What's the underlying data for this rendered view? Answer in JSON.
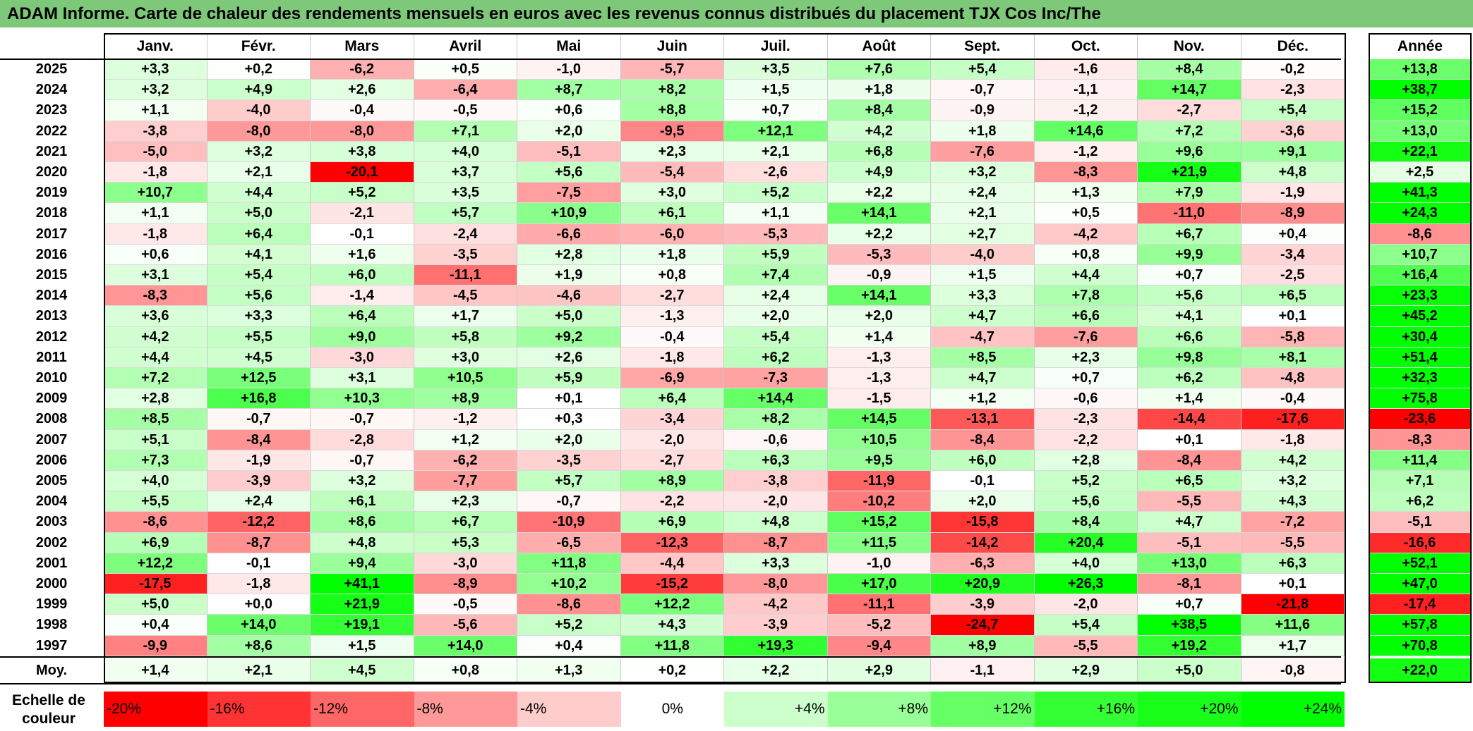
{
  "title": "ADAM Informe. Carte de chaleur des rendements mensuels en euros avec les revenus connus distribués du placement TJX Cos Inc/The",
  "chart_data": {
    "type": "heatmap",
    "months": [
      "Janv.",
      "Févr.",
      "Mars",
      "Avril",
      "Mai",
      "Juin",
      "Juil.",
      "Août",
      "Sept.",
      "Oct.",
      "Nov.",
      "Déc."
    ],
    "year_header": "Année",
    "rows": [
      {
        "year": "2025",
        "values": [
          "+3,3",
          "+0,2",
          "-6,2",
          "+0,5",
          "-1,0",
          "-5,7",
          "+3,5",
          "+7,6",
          "+5,4",
          "-1,6",
          "+8,4",
          "-0,2"
        ],
        "annual": "+13,8"
      },
      {
        "year": "2024",
        "values": [
          "+3,2",
          "+4,9",
          "+2,6",
          "-6,4",
          "+8,7",
          "+8,2",
          "+1,5",
          "+1,8",
          "-0,7",
          "-1,1",
          "+14,7",
          "-2,3"
        ],
        "annual": "+38,7"
      },
      {
        "year": "2023",
        "values": [
          "+1,1",
          "-4,0",
          "-0,4",
          "-0,5",
          "+0,6",
          "+8,8",
          "+0,7",
          "+8,4",
          "-0,9",
          "-1,2",
          "-2,7",
          "+5,4"
        ],
        "annual": "+15,2"
      },
      {
        "year": "2022",
        "values": [
          "-3,8",
          "-8,0",
          "-8,0",
          "+7,1",
          "+2,0",
          "-9,5",
          "+12,1",
          "+4,2",
          "+1,8",
          "+14,6",
          "+7,2",
          "-3,6"
        ],
        "annual": "+13,0"
      },
      {
        "year": "2021",
        "values": [
          "-5,0",
          "+3,2",
          "+3,8",
          "+4,0",
          "-5,1",
          "+2,3",
          "+2,1",
          "+6,8",
          "-7,6",
          "-1,2",
          "+9,6",
          "+9,1"
        ],
        "annual": "+22,1"
      },
      {
        "year": "2020",
        "values": [
          "-1,8",
          "+2,1",
          "-20,1",
          "+3,7",
          "+5,6",
          "-5,4",
          "-2,6",
          "+4,9",
          "+3,2",
          "-8,3",
          "+21,9",
          "+4,8"
        ],
        "annual": "+2,5"
      },
      {
        "year": "2019",
        "values": [
          "+10,7",
          "+4,4",
          "+5,2",
          "+3,5",
          "-7,5",
          "+3,0",
          "+5,2",
          "+2,2",
          "+2,4",
          "+1,3",
          "+7,9",
          "-1,9"
        ],
        "annual": "+41,3"
      },
      {
        "year": "2018",
        "values": [
          "+1,1",
          "+5,0",
          "-2,1",
          "+5,7",
          "+10,9",
          "+6,1",
          "+1,1",
          "+14,1",
          "+2,1",
          "+0,5",
          "-11,0",
          "-8,9"
        ],
        "annual": "+24,3"
      },
      {
        "year": "2017",
        "values": [
          "-1,8",
          "+6,4",
          "-0,1",
          "-2,4",
          "-6,6",
          "-6,0",
          "-5,3",
          "+2,2",
          "+2,7",
          "-4,2",
          "+6,7",
          "+0,4"
        ],
        "annual": "-8,6"
      },
      {
        "year": "2016",
        "values": [
          "+0,6",
          "+4,1",
          "+1,6",
          "-3,5",
          "+2,8",
          "+1,8",
          "+5,9",
          "-5,3",
          "-4,0",
          "+0,8",
          "+9,9",
          "-3,4"
        ],
        "annual": "+10,7"
      },
      {
        "year": "2015",
        "values": [
          "+3,1",
          "+5,4",
          "+6,0",
          "-11,1",
          "+1,9",
          "+0,8",
          "+7,4",
          "-0,9",
          "+1,5",
          "+4,4",
          "+0,7",
          "-2,5"
        ],
        "annual": "+16,4"
      },
      {
        "year": "2014",
        "values": [
          "-8,3",
          "+5,6",
          "-1,4",
          "-4,5",
          "-4,6",
          "-2,7",
          "+2,4",
          "+14,1",
          "+3,3",
          "+7,8",
          "+5,6",
          "+6,5"
        ],
        "annual": "+23,3"
      },
      {
        "year": "2013",
        "values": [
          "+3,6",
          "+3,3",
          "+6,4",
          "+1,7",
          "+5,0",
          "-1,3",
          "+2,0",
          "+2,0",
          "+4,7",
          "+6,6",
          "+4,1",
          "+0,1"
        ],
        "annual": "+45,2"
      },
      {
        "year": "2012",
        "values": [
          "+4,2",
          "+5,5",
          "+9,0",
          "+5,8",
          "+9,2",
          "-0,4",
          "+5,4",
          "+1,4",
          "-4,7",
          "-7,6",
          "+6,6",
          "-5,8"
        ],
        "annual": "+30,4"
      },
      {
        "year": "2011",
        "values": [
          "+4,4",
          "+4,5",
          "-3,0",
          "+3,0",
          "+2,6",
          "-1,8",
          "+6,2",
          "-1,3",
          "+8,5",
          "+2,3",
          "+9,8",
          "+8,1"
        ],
        "annual": "+51,4"
      },
      {
        "year": "2010",
        "values": [
          "+7,2",
          "+12,5",
          "+3,1",
          "+10,5",
          "+5,9",
          "-6,9",
          "-7,3",
          "-1,3",
          "+4,7",
          "+0,7",
          "+6,2",
          "-4,8"
        ],
        "annual": "+32,3"
      },
      {
        "year": "2009",
        "values": [
          "+2,8",
          "+16,8",
          "+10,3",
          "+8,9",
          "+0,1",
          "+6,4",
          "+14,4",
          "-1,5",
          "+1,2",
          "-0,6",
          "+1,4",
          "-0,4"
        ],
        "annual": "+75,8"
      },
      {
        "year": "2008",
        "values": [
          "+8,5",
          "-0,7",
          "-0,7",
          "-1,2",
          "+0,3",
          "-3,4",
          "+8,2",
          "+14,5",
          "-13,1",
          "-2,3",
          "-14,4",
          "-17,6"
        ],
        "annual": "-23,6"
      },
      {
        "year": "2007",
        "values": [
          "+5,1",
          "-8,4",
          "-2,8",
          "+1,2",
          "+2,0",
          "-2,0",
          "-0,6",
          "+10,5",
          "-8,4",
          "-2,2",
          "+0,1",
          "-1,8"
        ],
        "annual": "-8,3"
      },
      {
        "year": "2006",
        "values": [
          "+7,3",
          "-1,9",
          "-0,7",
          "-6,2",
          "-3,5",
          "-2,7",
          "+6,3",
          "+9,5",
          "+6,0",
          "+2,8",
          "-8,4",
          "+4,2"
        ],
        "annual": "+11,4"
      },
      {
        "year": "2005",
        "values": [
          "+4,0",
          "-3,9",
          "+3,2",
          "-7,7",
          "+5,7",
          "+8,9",
          "-3,8",
          "-11,9",
          "-0,1",
          "+5,2",
          "+6,5",
          "+3,2"
        ],
        "annual": "+7,1"
      },
      {
        "year": "2004",
        "values": [
          "+5,5",
          "+2,4",
          "+6,1",
          "+2,3",
          "-0,7",
          "-2,2",
          "-2,0",
          "-10,2",
          "+2,0",
          "+5,6",
          "-5,5",
          "+4,3"
        ],
        "annual": "+6,2"
      },
      {
        "year": "2003",
        "values": [
          "-8,6",
          "-12,2",
          "+8,6",
          "+6,7",
          "-10,9",
          "+6,9",
          "+4,8",
          "+15,2",
          "-15,8",
          "+8,4",
          "+4,7",
          "-7,2"
        ],
        "annual": "-5,1"
      },
      {
        "year": "2002",
        "values": [
          "+6,9",
          "-8,7",
          "+4,8",
          "+5,3",
          "-6,5",
          "-12,3",
          "-8,7",
          "+11,5",
          "-14,2",
          "+20,4",
          "-5,1",
          "-5,5"
        ],
        "annual": "-16,6"
      },
      {
        "year": "2001",
        "values": [
          "+12,2",
          "-0,1",
          "+9,4",
          "-3,0",
          "+11,8",
          "-4,4",
          "+3,3",
          "-1,0",
          "-6,3",
          "+4,0",
          "+13,0",
          "+6,3"
        ],
        "annual": "+52,1"
      },
      {
        "year": "2000",
        "values": [
          "-17,5",
          "-1,8",
          "+41,1",
          "-8,9",
          "+10,2",
          "-15,2",
          "-8,0",
          "+17,0",
          "+20,9",
          "+26,3",
          "-8,1",
          "+0,1"
        ],
        "annual": "+47,0"
      },
      {
        "year": "1999",
        "values": [
          "+5,0",
          "+0,0",
          "+21,9",
          "-0,5",
          "-8,6",
          "+12,2",
          "-4,2",
          "-11,1",
          "-3,9",
          "-2,0",
          "+0,7",
          "-21,8"
        ],
        "annual": "-17,4"
      },
      {
        "year": "1998",
        "values": [
          "+0,4",
          "+14,0",
          "+19,1",
          "-5,6",
          "+5,2",
          "+4,3",
          "-3,9",
          "-5,2",
          "-24,7",
          "+5,4",
          "+38,5",
          "+11,6"
        ],
        "annual": "+57,8"
      },
      {
        "year": "1997",
        "values": [
          "-9,9",
          "+8,6",
          "+1,5",
          "+14,0",
          "+0,4",
          "+11,8",
          "+19,3",
          "-9,4",
          "+8,9",
          "-5,5",
          "+19,2",
          "+1,7"
        ],
        "annual": "+70,8"
      }
    ],
    "average": {
      "label": "Moy.",
      "values": [
        "+1,4",
        "+2,1",
        "+4,5",
        "+0,8",
        "+1,3",
        "+0,2",
        "+2,2",
        "+2,9",
        "-1,1",
        "+2,9",
        "+5,0",
        "-0,8"
      ],
      "annual": "+22,0"
    },
    "scale": {
      "label": "Echelle de couleur",
      "stops": [
        {
          "label": "-20%",
          "value": -20,
          "color": "#ff0000"
        },
        {
          "label": "-16%",
          "value": -16,
          "color": "#ff3333"
        },
        {
          "label": "-12%",
          "value": -12,
          "color": "#ff6666"
        },
        {
          "label": "-8%",
          "value": -8,
          "color": "#ff9999"
        },
        {
          "label": "-4%",
          "value": -4,
          "color": "#ffcccc"
        },
        {
          "label": "0%",
          "value": 0,
          "color": "#ffffff"
        },
        {
          "label": "+4%",
          "value": 4,
          "color": "#ccffcc"
        },
        {
          "label": "+8%",
          "value": 8,
          "color": "#99ff99"
        },
        {
          "label": "+12%",
          "value": 12,
          "color": "#66ff66"
        },
        {
          "label": "+16%",
          "value": 16,
          "color": "#33ff33"
        },
        {
          "label": "+20%",
          "value": 20,
          "color": "#1aff1a"
        },
        {
          "label": "+24%",
          "value": 24,
          "color": "#00ff00"
        }
      ]
    }
  }
}
